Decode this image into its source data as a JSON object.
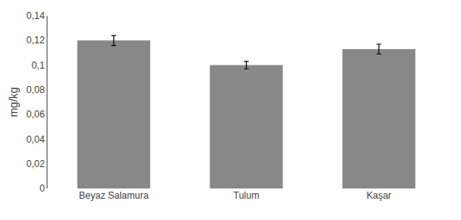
{
  "chart_data": {
    "type": "bar",
    "categories": [
      "Beyaz Salamura",
      "Tulum",
      "Kaşar"
    ],
    "values": [
      0.12,
      0.1,
      0.113
    ],
    "errors": [
      0.004,
      0.003,
      0.004
    ],
    "color": "#888888",
    "ylabel": "mg/kg",
    "ylim": [
      0,
      0.14
    ],
    "yticks": [
      0,
      {
        "value": 0.02,
        "label": "0,02"
      },
      {
        "value": 0.04,
        "label": "0,04"
      },
      {
        "value": 0.06,
        "label": "0,06"
      },
      {
        "value": 0.08,
        "label": "0,08"
      },
      {
        "value": 0.1,
        "label": "0,1"
      },
      {
        "value": 0.12,
        "label": "0,12"
      },
      {
        "value": 0.14,
        "label": "0,14"
      }
    ],
    "grid": false
  }
}
